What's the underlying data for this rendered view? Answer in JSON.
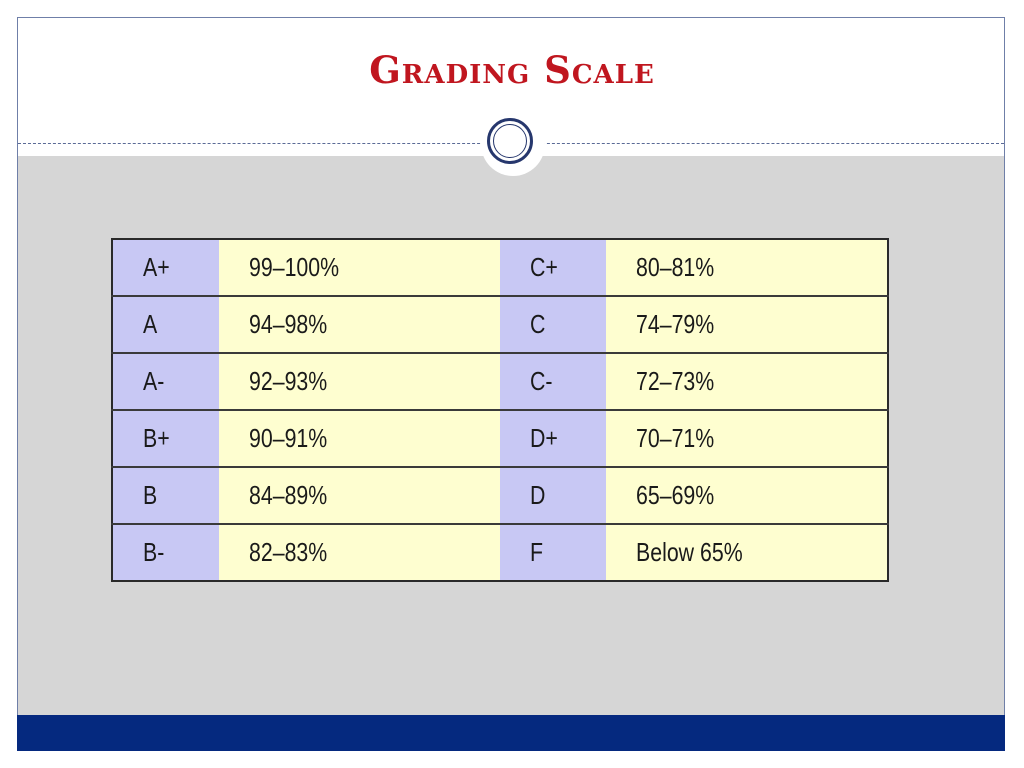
{
  "slide": {
    "title": "Grading Scale"
  },
  "grading_table": {
    "rows": [
      {
        "grade_left": "A+",
        "range_left": "99–100%",
        "grade_right": "C+",
        "range_right": "80–81%"
      },
      {
        "grade_left": "A",
        "range_left": "94–98%",
        "grade_right": "C",
        "range_right": "74–79%"
      },
      {
        "grade_left": "A-",
        "range_left": "92–93%",
        "grade_right": "C-",
        "range_right": "72–73%"
      },
      {
        "grade_left": "B+",
        "range_left": "90–91%",
        "grade_right": "D+",
        "range_right": "70–71%"
      },
      {
        "grade_left": "B",
        "range_left": "84–89%",
        "grade_right": "D",
        "range_right": "65–69%"
      },
      {
        "grade_left": "B-",
        "range_left": "82–83%",
        "grade_right": "F",
        "range_right": "Below 65%"
      }
    ]
  },
  "colors": {
    "title": "#c0161f",
    "grade_cell": "#c8c8f4",
    "range_cell": "#fefed0",
    "content_background": "#d6d6d6",
    "footer_bar": "#05297f"
  }
}
